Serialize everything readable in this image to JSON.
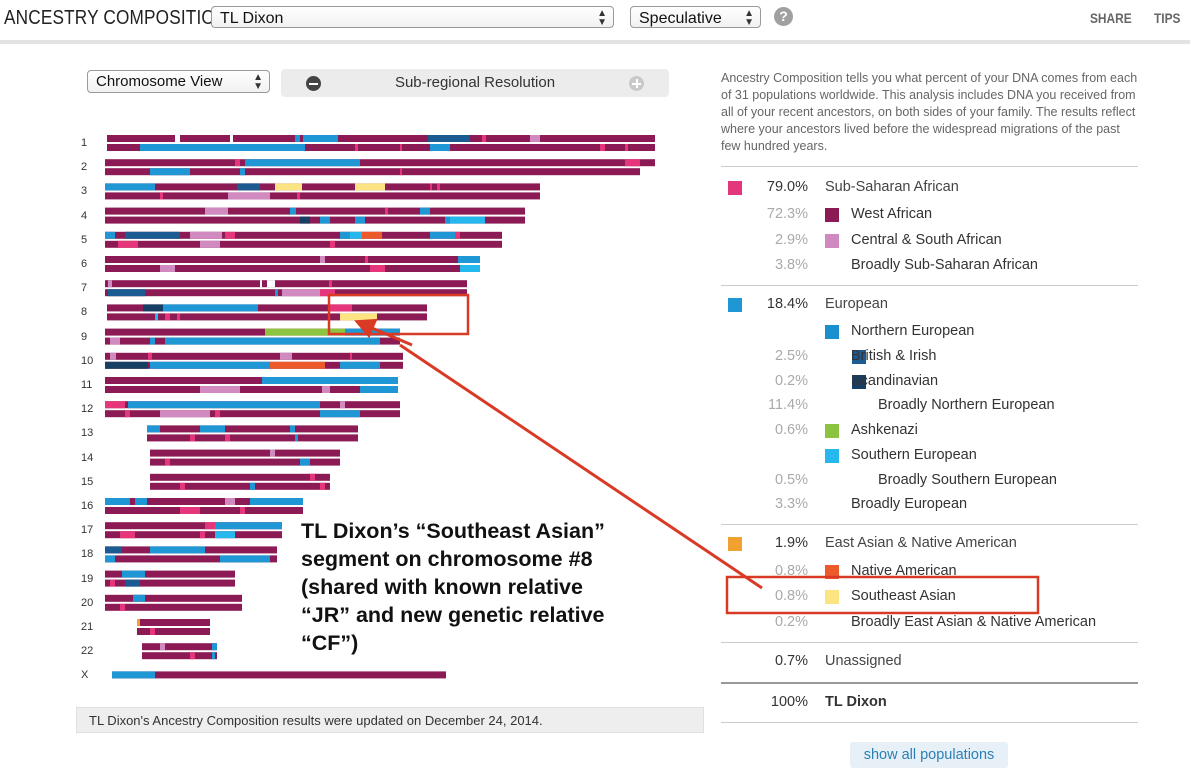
{
  "header": {
    "title": "ANCESTRY COMPOSITION",
    "person_select": "TL Dixon",
    "mode_select": "Speculative",
    "help": "?",
    "share": "SHARE",
    "tips": "TIPS"
  },
  "controls": {
    "view_select": "Chromosome View",
    "resolution_label": "Sub-regional Resolution"
  },
  "chromosome_labels": [
    "1",
    "2",
    "3",
    "4",
    "5",
    "6",
    "7",
    "8",
    "9",
    "10",
    "11",
    "12",
    "13",
    "14",
    "15",
    "16",
    "17",
    "18",
    "19",
    "20",
    "21",
    "22",
    "X"
  ],
  "footer_note": "TL Dixon's Ancestry Composition results were updated on December 24, 2014.",
  "intro_text": "Ancestry Composition tells you what percent of your DNA comes from each of 31 populations worldwide. This analysis includes DNA you received from all of your recent ancestors, on both sides of your family. The results reflect where your ancestors lived before the widespread migrations of the past few hundred years.",
  "colors": {
    "sub_saharan": "#e5357b",
    "west_african": "#8c1a55",
    "central_south_african": "#d08abf",
    "european": "#1f97d4",
    "northern_european": "#1a8fd0",
    "british_irish": "#1b5b92",
    "scandinavian": "#163f63",
    "ashkenazi": "#8cc43f",
    "southern_european": "#25b8ec",
    "east_asian": "#f1a12f",
    "native_american": "#ec5a2c",
    "southeast_asian": "#fde482",
    "annotation": "#d93a26"
  },
  "populations": [
    {
      "pct": "79.0%",
      "name": "Sub-Saharan African",
      "color": "#e5357b"
    },
    {
      "pct": "72.3%",
      "name": "West African",
      "color": "#8c1a55"
    },
    {
      "pct": "2.9%",
      "name": "Central & South African",
      "color": "#d08abf"
    },
    {
      "pct": "3.8%",
      "name": "Broadly Sub-Saharan African"
    },
    {
      "pct": "18.4%",
      "name": "European",
      "color": "#1f97d4"
    },
    {
      "pct": "",
      "name": "Northern European",
      "color": "#1a8fd0"
    },
    {
      "pct": "2.5%",
      "name": "British & Irish",
      "color": "#1b5b92"
    },
    {
      "pct": "0.2%",
      "name": "Scandinavian",
      "color": "#163f63"
    },
    {
      "pct": "11.4%",
      "name": "Broadly Northern European"
    },
    {
      "pct": "0.6%",
      "name": "Ashkenazi",
      "color": "#8cc43f"
    },
    {
      "pct": "",
      "name": "Southern European",
      "color": "#25b8ec"
    },
    {
      "pct": "0.5%",
      "name": "Broadly Southern European"
    },
    {
      "pct": "3.3%",
      "name": "Broadly European"
    },
    {
      "pct": "1.9%",
      "name": "East Asian & Native American",
      "color": "#f1a12f"
    },
    {
      "pct": "0.8%",
      "name": "Native American",
      "color": "#ec5a2c"
    },
    {
      "pct": "0.8%",
      "name": "Southeast Asian",
      "color": "#fde482"
    },
    {
      "pct": "0.2%",
      "name": "Broadly East Asian & Native American"
    },
    {
      "pct": "0.7%",
      "name": "Unassigned"
    },
    {
      "pct": "100%",
      "name": "TL Dixon"
    }
  ],
  "show_all": "show all populations",
  "annotation": {
    "line1": "TL Dixon’s “Southeast Asian”",
    "line2": "segment on chromosome #8",
    "line3": "(shared with known relative",
    "line4": "“JR” and new genetic relative",
    "line5": "“CF”)"
  }
}
